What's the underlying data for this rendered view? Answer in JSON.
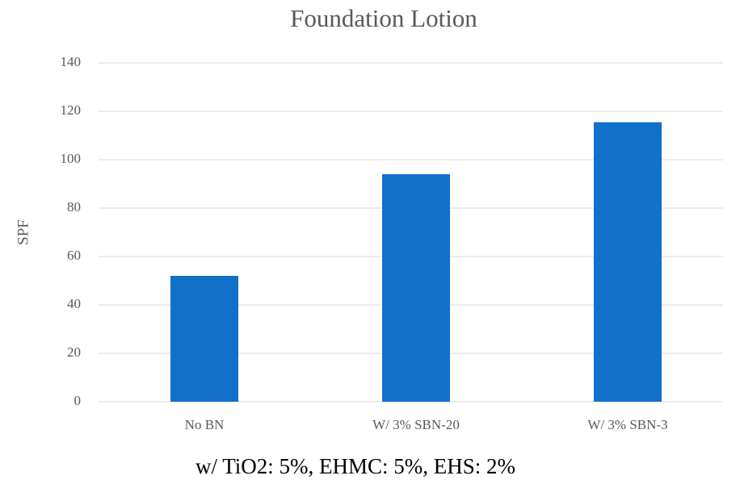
{
  "chart_data": {
    "type": "bar",
    "title": "Foundation Lotion",
    "x_label": "w/ TiO2: 5%, EHMC: 5%, EHS: 2%",
    "y_label": "SPF",
    "categories": [
      "No BN",
      "W/ 3% SBN-20",
      "W/ 3% SBN-3"
    ],
    "values": [
      52,
      94,
      115.5
    ],
    "color": "#1170c8",
    "ylim": [
      0,
      140
    ],
    "yticks": [
      0,
      20,
      40,
      60,
      80,
      100,
      120,
      140
    ],
    "grid": true
  }
}
